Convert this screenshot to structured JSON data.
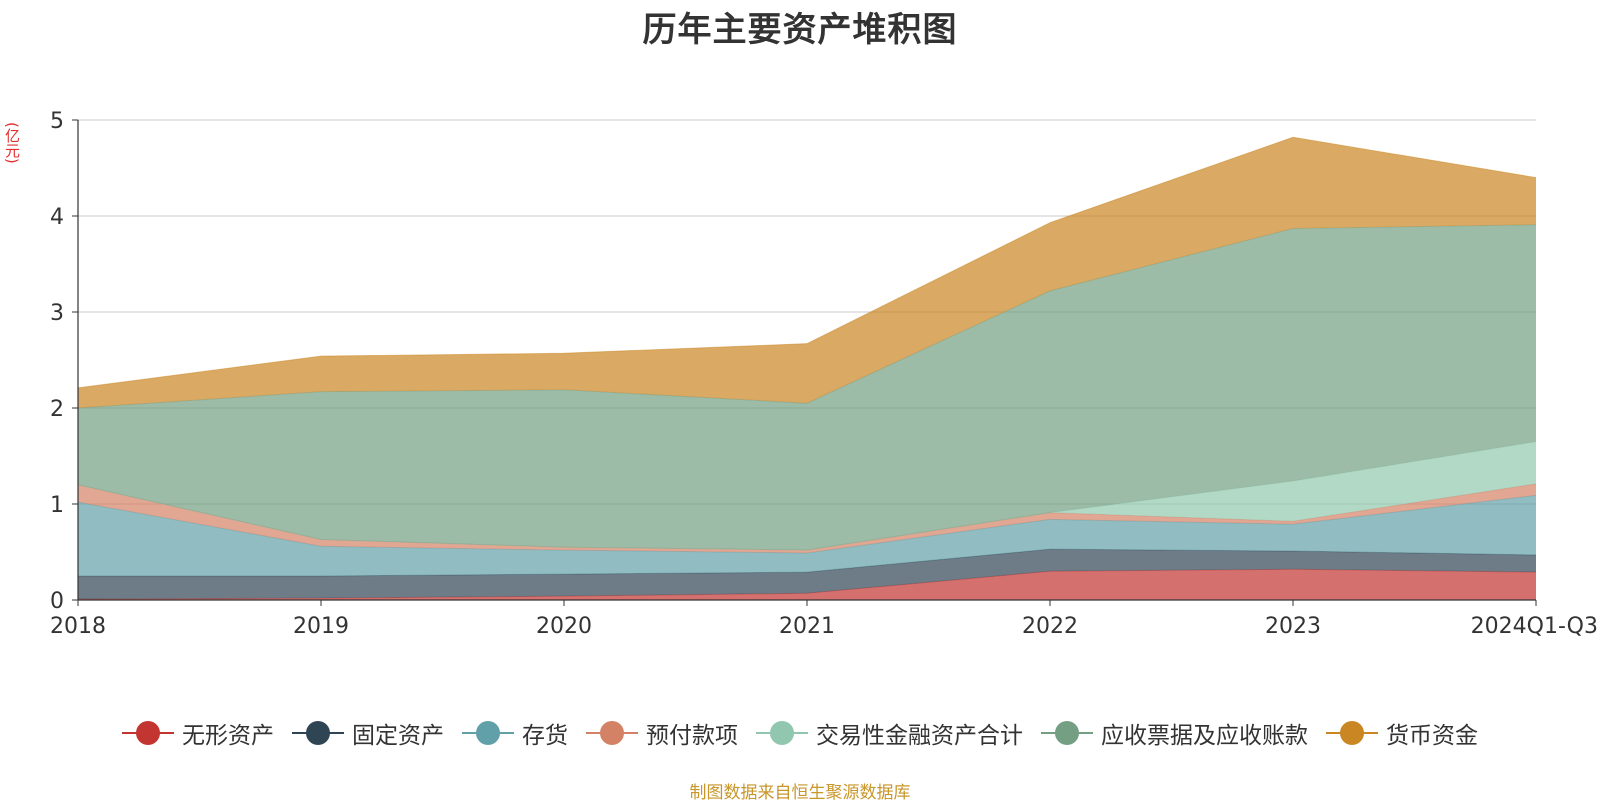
{
  "title": "历年主要资产堆积图",
  "unit_label": "(亿元)",
  "source_note": "制图数据来自恒生聚源数据库",
  "chart_data": {
    "type": "area",
    "stacked": true,
    "title": "历年主要资产堆积图",
    "ylabel": "(亿元)",
    "xlabel": "",
    "x": [
      "2018",
      "2019",
      "2020",
      "2021",
      "2022",
      "2023",
      "2024Q1-Q3"
    ],
    "y_ticks": [
      "0",
      "1",
      "2",
      "3",
      "4",
      "5"
    ],
    "ylim": [
      0,
      5
    ],
    "grid": true,
    "legend_position": "bottom",
    "series": [
      {
        "name": "无形资产",
        "color": "#c23531",
        "values": [
          0.01,
          0.02,
          0.04,
          0.07,
          0.3,
          0.32,
          0.29
        ]
      },
      {
        "name": "固定资产",
        "color": "#2f4554",
        "values": [
          0.24,
          0.23,
          0.23,
          0.22,
          0.23,
          0.19,
          0.18
        ]
      },
      {
        "name": "存货",
        "color": "#61a0a8",
        "values": [
          0.77,
          0.31,
          0.25,
          0.2,
          0.31,
          0.28,
          0.62
        ]
      },
      {
        "name": "预付款项",
        "color": "#d48265",
        "values": [
          0.18,
          0.07,
          0.03,
          0.03,
          0.07,
          0.03,
          0.12
        ]
      },
      {
        "name": "交易性金融资产合计",
        "color": "#91c7ae",
        "values": [
          0,
          0,
          0,
          0,
          0,
          0.42,
          0.44
        ]
      },
      {
        "name": "应收票据及应收账款",
        "color": "#749f83",
        "values": [
          0.8,
          1.54,
          1.64,
          1.53,
          2.31,
          2.63,
          2.26
        ]
      },
      {
        "name": "货币资金",
        "color": "#ca8622",
        "values": [
          0.21,
          0.37,
          0.38,
          0.62,
          0.71,
          0.95,
          0.49
        ]
      }
    ]
  }
}
